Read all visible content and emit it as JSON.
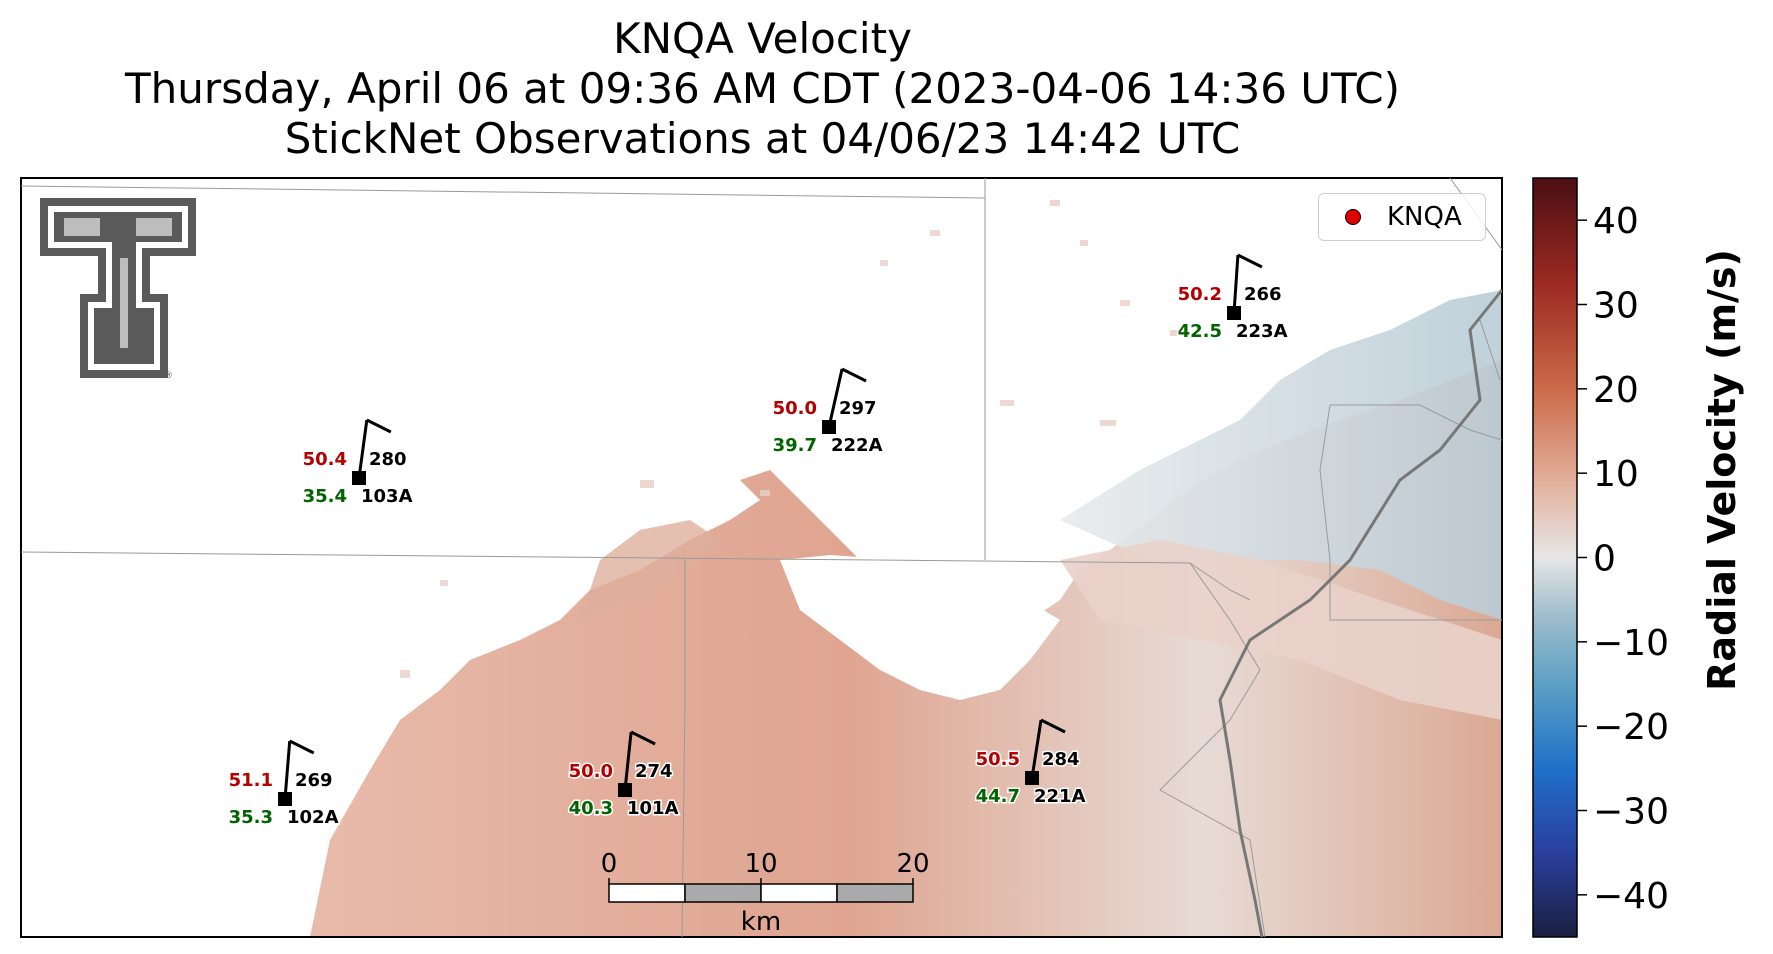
{
  "title": {
    "line1": "KNQA Velocity",
    "line2": "Thursday, April 06 at 09:36 AM CDT (2023-04-06 14:36 UTC)",
    "line3": "StickNet Observations at 04/06/23 14:42 UTC"
  },
  "legend": {
    "label": "KNQA",
    "marker_color": "#e00000"
  },
  "colorbar": {
    "label": "Radial Velocity (m/s)",
    "min": -45,
    "max": 45,
    "ticks": [
      "40",
      "30",
      "20",
      "10",
      "0",
      "−10",
      "−20",
      "−30",
      "−40"
    ],
    "tick_values": [
      40,
      30,
      20,
      10,
      0,
      -10,
      -20,
      -30,
      -40
    ],
    "colors": [
      "#1a1f3f",
      "#2b3f9e",
      "#1f6fc9",
      "#5a9fc4",
      "#9dbccb",
      "#e6e6e6",
      "#e3b09c",
      "#cc6b4a",
      "#9c2a22",
      "#4b0f14"
    ]
  },
  "scalebar": {
    "labels": [
      "0",
      "10",
      "20"
    ],
    "unit": "km"
  },
  "stations": [
    {
      "id": "103A",
      "temp": "50.4",
      "dew": "35.4",
      "dir": "280"
    },
    {
      "id": "222A",
      "temp": "50.0",
      "dew": "39.7",
      "dir": "297"
    },
    {
      "id": "223A",
      "temp": "50.2",
      "dew": "42.5",
      "dir": "266"
    },
    {
      "id": "102A",
      "temp": "51.1",
      "dew": "35.3",
      "dir": "269"
    },
    {
      "id": "101A",
      "temp": "50.0",
      "dew": "40.3",
      "dir": "274"
    },
    {
      "id": "221A",
      "temp": "50.5",
      "dew": "44.7",
      "dir": "284"
    }
  ],
  "logo": {
    "name": "texas-tech-double-t-logo",
    "color": "#5a5a5a"
  },
  "colors": {
    "temp": "#b30000",
    "dew": "#006400",
    "text": "#000000",
    "boundary": "#9a9a9a"
  }
}
